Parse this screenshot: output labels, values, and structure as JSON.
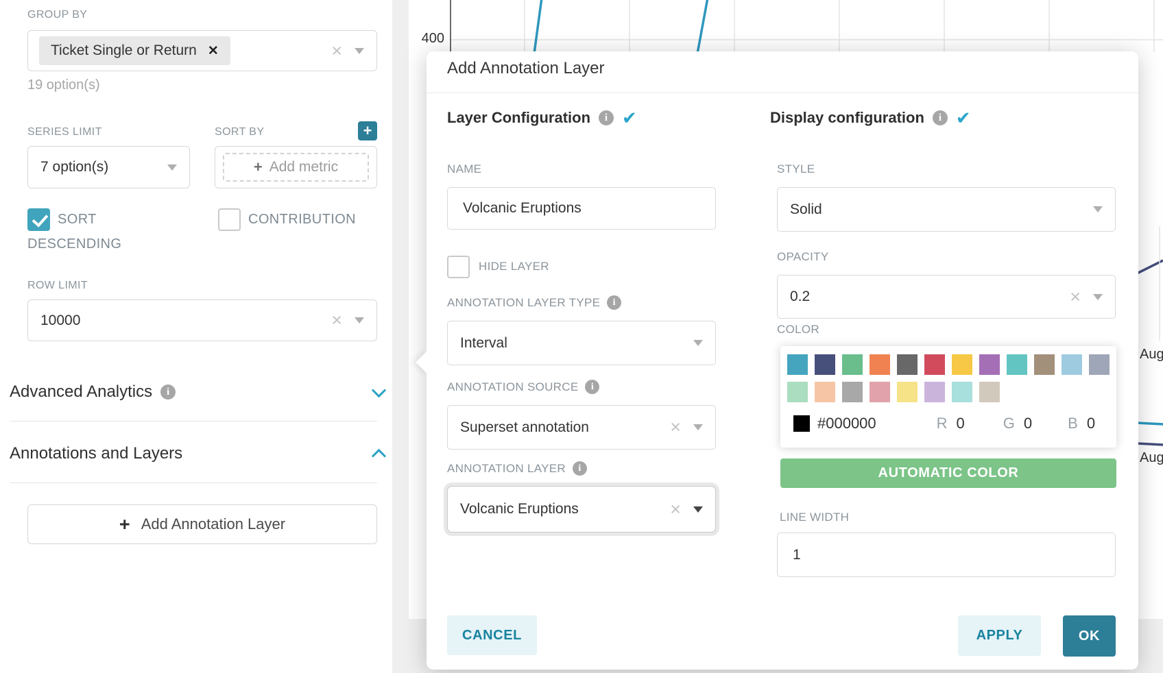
{
  "left_panel": {
    "group_by_label": "GROUP BY",
    "group_by_tag": "Ticket Single or Return",
    "group_by_hint": "19 option(s)",
    "series_limit_label": "SERIES LIMIT",
    "series_limit_value": "7 option(s)",
    "sort_by_label": "SORT BY",
    "sort_by_placeholder": "Add metric",
    "sort_descending_label": "SORT DESCENDING",
    "contribution_label": "CONTRIBUTION",
    "row_limit_label": "ROW LIMIT",
    "row_limit_value": "10000",
    "advanced_analytics_label": "Advanced Analytics",
    "annotations_label": "Annotations and Layers",
    "add_annotation_button": "Add Annotation Layer"
  },
  "chart": {
    "y_tick": "400",
    "x_tick_upper": "Aug",
    "x_tick_lower": "Aug",
    "line_color": "#2E97BE",
    "navy_line_color": "#454E7C"
  },
  "popover": {
    "title": "Add Annotation Layer",
    "layer_config": {
      "heading": "Layer Configuration",
      "name_label": "NAME",
      "name_value": "Volcanic Eruptions",
      "hide_layer_label": "HIDE LAYER",
      "type_label": "ANNOTATION LAYER TYPE",
      "type_value": "Interval",
      "source_label": "ANNOTATION SOURCE",
      "source_value": "Superset annotation",
      "layer_label": "ANNOTATION LAYER",
      "layer_value": "Volcanic Eruptions"
    },
    "display_config": {
      "heading": "Display configuration",
      "style_label": "STYLE",
      "style_value": "Solid",
      "opacity_label": "OPACITY",
      "opacity_value": "0.2",
      "color_label": "COLOR",
      "swatches_row1": [
        "#45A5BE",
        "#474F7B",
        "#69BE8C",
        "#F08252",
        "#686868",
        "#D24B5D",
        "#F6C845",
        "#A56FB6",
        "#62C5C2",
        "#A3907B",
        "#9FCBE0",
        "#9FA6B7"
      ],
      "swatches_row2": [
        "#ABDDC0",
        "#F6C5A5",
        "#A8A8A8",
        "#E2A2AC",
        "#F6E388",
        "#CBB4DC",
        "#A8E0DE",
        "#D2C9BD"
      ],
      "hex_value": "#000000",
      "r_label": "R",
      "r_value": "0",
      "g_label": "G",
      "g_value": "0",
      "b_label": "B",
      "b_value": "0",
      "automatic_color_button": "AUTOMATIC COLOR",
      "line_width_label": "LINE WIDTH",
      "line_width_value": "1"
    },
    "cancel_button": "CANCEL",
    "apply_button": "APPLY",
    "ok_button": "OK"
  }
}
